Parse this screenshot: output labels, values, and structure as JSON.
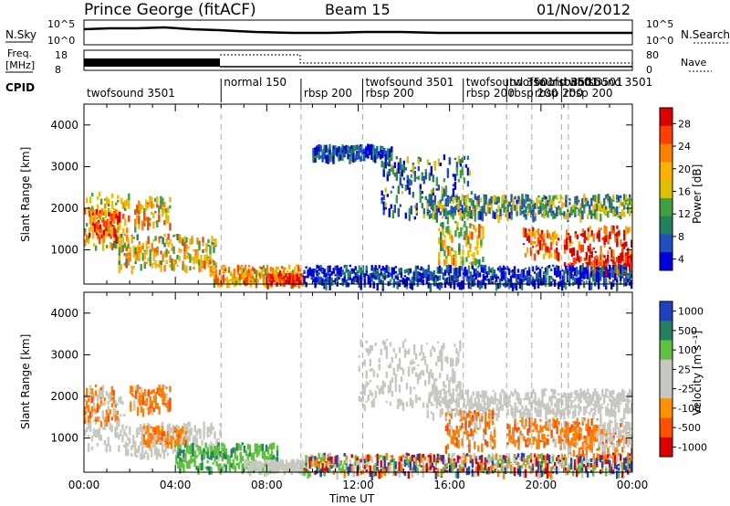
{
  "header": {
    "station": "Prince George (fitACF)",
    "beam": "Beam 15",
    "date": "01/Nov/2012"
  },
  "status_panel": {
    "nsky_label": "N.Sky",
    "nsky_ticks": [
      "10^5",
      "10^0"
    ],
    "nsearch_label": "N.Search",
    "nsearch_ticks": [
      "10^5",
      "10^0"
    ],
    "freq_label_line1": "Freq.",
    "freq_label_line2": "[MHz]",
    "freq_ticks": [
      "18",
      "8"
    ],
    "nave_label": "Nave",
    "nave_ticks": [
      "80",
      "0"
    ],
    "cpid_label": "CPID"
  },
  "cpid_segments": [
    {
      "label": "twofsound 3501",
      "start_hr": 0.0,
      "row": 1
    },
    {
      "label": "normal 150",
      "start_hr": 6.0,
      "row": 0
    },
    {
      "label": "rbsp 200",
      "start_hr": 9.5,
      "row": 1
    },
    {
      "label": "twofsound 3501",
      "start_hr": 12.2,
      "row": 0
    },
    {
      "label": "rbsp 200",
      "start_hr": 12.2,
      "row": 1
    },
    {
      "label": "twofsound 3501",
      "start_hr": 16.6,
      "row": 0
    },
    {
      "label": "rbsp 200",
      "start_hr": 16.6,
      "row": 1
    },
    {
      "label": "twofsound 3501",
      "start_hr": 18.5,
      "row": 0
    },
    {
      "label": "rbsp 200",
      "start_hr": 18.5,
      "row": 1
    },
    {
      "label": "twofsound 3501",
      "start_hr": 19.6,
      "row": 0
    },
    {
      "label": "rbsp 200",
      "start_hr": 19.6,
      "row": 1
    },
    {
      "label": "twofsound 3501",
      "start_hr": 20.9,
      "row": 0
    },
    {
      "label": "rbsp 200",
      "start_hr": 20.9,
      "row": 1
    },
    {
      "label": "3501",
      "start_hr": 21.2,
      "row": 0
    }
  ],
  "chart_data": [
    {
      "type": "heatmap",
      "panel": "power",
      "ylabel": "Slant Range [km]",
      "ylim": [
        180,
        4500
      ],
      "xlim_hours": [
        0,
        24
      ],
      "y_ticks": [
        1000,
        2000,
        3000,
        4000
      ],
      "colorbar_label": "Power [dB]",
      "colorbar_ticks": [
        "28",
        "24",
        "20",
        "16",
        "12",
        "8",
        "4"
      ],
      "colorbar_colors": [
        "#e00000",
        "#ff4000",
        "#ff8000",
        "#ffb000",
        "#e0c000",
        "#40a040",
        "#208060",
        "#2050c0",
        "#0000e0"
      ],
      "regions": [
        {
          "x0": 0.0,
          "x1": 2.0,
          "y0": 1100,
          "y1": 2400,
          "level": 0.55
        },
        {
          "x0": 0.2,
          "x1": 1.6,
          "y0": 1300,
          "y1": 2000,
          "level": 0.8
        },
        {
          "x0": 2.2,
          "x1": 3.8,
          "y0": 1600,
          "y1": 2300,
          "level": 0.6
        },
        {
          "x0": 1.5,
          "x1": 5.8,
          "y0": 600,
          "y1": 1400,
          "level": 0.55
        },
        {
          "x0": 5.5,
          "x1": 9.5,
          "y0": 250,
          "y1": 650,
          "level": 0.65
        },
        {
          "x0": 8.0,
          "x1": 9.6,
          "y0": 250,
          "y1": 450,
          "level": 0.85
        },
        {
          "x0": 10.0,
          "x1": 13.5,
          "y0": 3250,
          "y1": 3550,
          "level": 0.15
        },
        {
          "x0": 13.0,
          "x1": 17.0,
          "y0": 1800,
          "y1": 3300,
          "level": 0.25
        },
        {
          "x0": 15.0,
          "x1": 24.0,
          "y0": 1850,
          "y1": 2350,
          "level": 0.35
        },
        {
          "x0": 15.5,
          "x1": 17.5,
          "y0": 700,
          "y1": 1700,
          "level": 0.55
        },
        {
          "x0": 19.2,
          "x1": 20.8,
          "y0": 900,
          "y1": 1550,
          "level": 0.75
        },
        {
          "x0": 21.0,
          "x1": 24.0,
          "y0": 600,
          "y1": 1600,
          "level": 0.85
        },
        {
          "x0": 22.0,
          "x1": 24.0,
          "y0": 500,
          "y1": 900,
          "level": 0.95
        },
        {
          "x0": 9.6,
          "x1": 24.0,
          "y0": 200,
          "y1": 650,
          "level": 0.1
        }
      ]
    },
    {
      "type": "heatmap",
      "panel": "velocity",
      "xlabel": "Time UT",
      "ylabel": "Slant Range [km]",
      "ylim": [
        180,
        4500
      ],
      "xlim_hours": [
        0,
        24
      ],
      "y_ticks": [
        1000,
        2000,
        3000,
        4000
      ],
      "x_tick_labels": [
        "00:00",
        "04:00",
        "08:00",
        "12:00",
        "16:00",
        "20:00",
        "00:00"
      ],
      "colorbar_label": "Velocity [m s⁻¹]",
      "colorbar_ticks": [
        "1000",
        "500",
        "100",
        "25",
        "-25",
        "-100",
        "-500",
        "-1000"
      ],
      "colorbar_colors": [
        "#2040c0",
        "#208060",
        "#60c040",
        "#c8c8c0",
        "#c8c8c0",
        "#ff9000",
        "#ff5000",
        "#e00000"
      ],
      "regions": [
        {
          "x0": 0.0,
          "x1": 1.8,
          "y0": 800,
          "y1": 2200,
          "v": "ground"
        },
        {
          "x0": 0.0,
          "x1": 1.5,
          "y0": 1400,
          "y1": 2300,
          "v": -150
        },
        {
          "x0": 2.0,
          "x1": 3.8,
          "y0": 1700,
          "y1": 2300,
          "v": -150
        },
        {
          "x0": 1.8,
          "x1": 6.0,
          "y0": 600,
          "y1": 1400,
          "v": "ground"
        },
        {
          "x0": 2.5,
          "x1": 4.5,
          "y0": 900,
          "y1": 1300,
          "v": -150
        },
        {
          "x0": 4.0,
          "x1": 8.5,
          "y0": 300,
          "y1": 900,
          "v": 100
        },
        {
          "x0": 7.0,
          "x1": 9.6,
          "y0": 250,
          "y1": 500,
          "v": "ground"
        },
        {
          "x0": 12.0,
          "x1": 16.5,
          "y0": 1800,
          "y1": 3400,
          "v": "ground"
        },
        {
          "x0": 15.0,
          "x1": 24.0,
          "y0": 1600,
          "y1": 2200,
          "v": "ground"
        },
        {
          "x0": 15.8,
          "x1": 18.0,
          "y0": 800,
          "y1": 1700,
          "v": -200
        },
        {
          "x0": 18.5,
          "x1": 22.5,
          "y0": 900,
          "y1": 1500,
          "v": -300
        },
        {
          "x0": 21.0,
          "x1": 24.0,
          "y0": 600,
          "y1": 1400,
          "v": -300
        },
        {
          "x0": 22.5,
          "x1": 24.0,
          "y0": 800,
          "y1": 1500,
          "v": "ground"
        },
        {
          "x0": 9.6,
          "x1": 24.0,
          "y0": 200,
          "y1": 650,
          "v": "noise"
        }
      ]
    }
  ]
}
